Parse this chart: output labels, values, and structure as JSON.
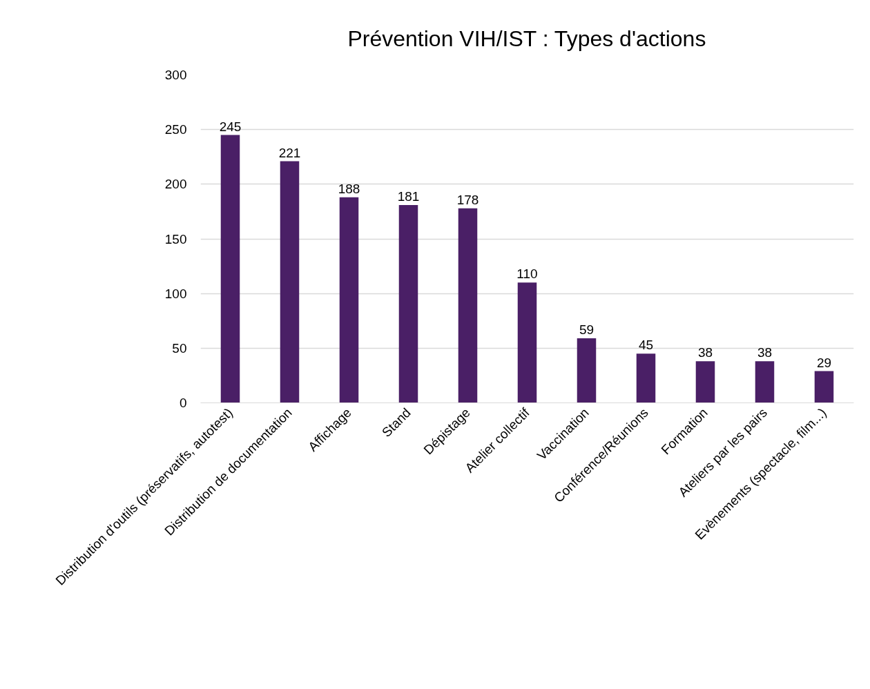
{
  "chart_data": {
    "type": "bar",
    "title": "Prévention VIH/IST : Types d'actions",
    "categories": [
      "Distribution d'outils (préservatifs, autotest)",
      "Distribution de documentation",
      "Affichage",
      "Stand",
      "Dépistage",
      "Atelier collectif",
      "Vaccination",
      "Conférence/Réunions",
      "Formation",
      "Ateliers par les pairs",
      "Evènements (spectacle, film...)"
    ],
    "values": [
      245,
      221,
      188,
      181,
      178,
      110,
      59,
      45,
      38,
      38,
      29
    ],
    "color": "#4a1f66",
    "ylim": [
      0,
      300
    ],
    "yticks": [
      0,
      50,
      100,
      150,
      200,
      250,
      300
    ],
    "grid": "y",
    "data_labels": true
  }
}
